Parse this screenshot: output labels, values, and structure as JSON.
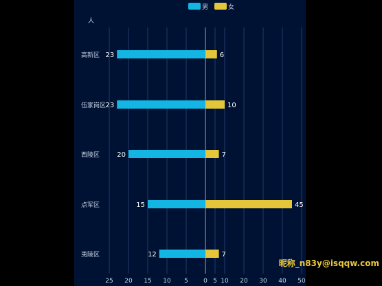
{
  "chart_data": {
    "type": "bar",
    "orientation": "horizontal",
    "ylabel": "人",
    "categories": [
      "高新区",
      "伍家岗区",
      "西陵区",
      "点军区",
      "夷陵区"
    ],
    "series": [
      {
        "name": "男",
        "values": [
          23,
          23,
          20,
          15,
          12
        ],
        "color": "#13b5e3",
        "direction": "left"
      },
      {
        "name": "女",
        "values": [
          6,
          10,
          7,
          45,
          7
        ],
        "color": "#e5c63a",
        "direction": "right"
      }
    ],
    "xlim": [
      -25,
      50
    ],
    "x_tick_labels": [
      "25",
      "20",
      "15",
      "10",
      "5",
      "0",
      "5",
      "10",
      "20",
      "30",
      "40",
      "50"
    ],
    "legend_position": "top-center",
    "grid": true
  },
  "watermark": "昵称_n83y@isqqw.com",
  "colors": {
    "panel_bg": "#001233",
    "text": "#c9d3e6",
    "grid": "#1f3a66",
    "axis": "#8fa3c7"
  }
}
